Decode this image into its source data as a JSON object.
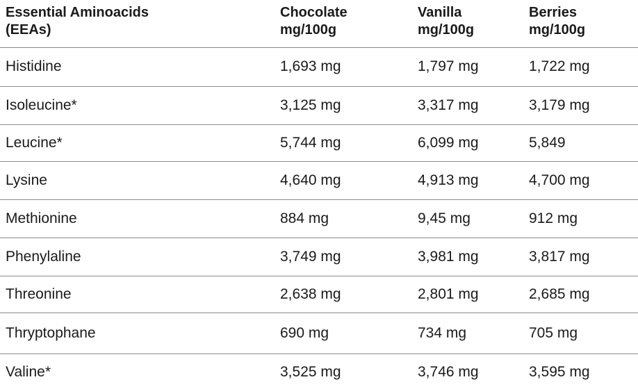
{
  "table": {
    "header": [
      [
        "Essential Aminoacids",
        "(EEAs)"
      ],
      [
        "Chocolate",
        "mg/100g"
      ],
      [
        "Vanilla",
        "mg/100g"
      ],
      [
        "Berries",
        "mg/100g"
      ]
    ],
    "rows": [
      [
        "Histidine",
        "1,693 mg",
        "1,797 mg",
        "1,722 mg"
      ],
      [
        "Isoleucine*",
        "3,125 mg",
        "3,317 mg",
        "3,179 mg"
      ],
      [
        "Leucine*",
        "5,744 mg",
        "6,099 mg",
        "5,849"
      ],
      [
        "Lysine",
        "4,640 mg",
        "4,913 mg",
        "4,700 mg"
      ],
      [
        "Methionine",
        "884 mg",
        "9,45 mg",
        "912 mg"
      ],
      [
        "Phenylaline",
        "3,749 mg",
        "3,981 mg",
        "3,817 mg"
      ],
      [
        "Threonine",
        "2,638 mg",
        "2,801 mg",
        "2,685 mg"
      ],
      [
        "Thryptophane",
        "690 mg",
        "734 mg",
        "705 mg"
      ],
      [
        "Valine*",
        "3,525 mg",
        "3,746 mg",
        "3,595 mg"
      ]
    ]
  }
}
